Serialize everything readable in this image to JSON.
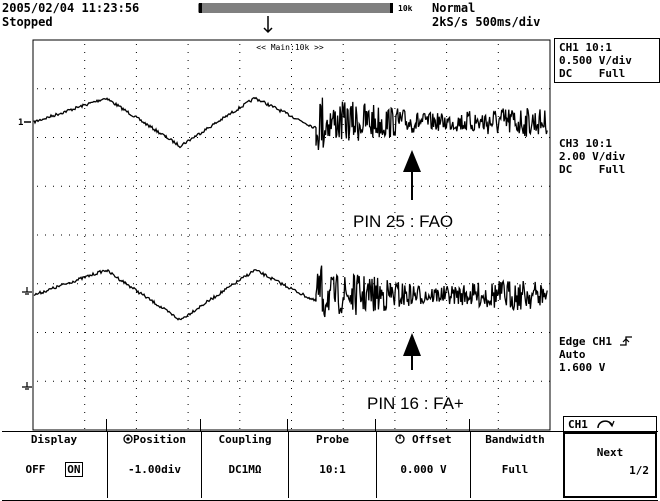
{
  "header": {
    "timestamp": "2005/02/04 11:23:56",
    "status": "Stopped",
    "record_length": "10k",
    "trigger_mode": "Normal",
    "sample_rate": "2kS/s",
    "timebase": "500ms/div"
  },
  "zoom_label": "<< Main:10k >>",
  "channels": {
    "ch1": {
      "title": "CH1 10:1",
      "scale": "0.500 V/div",
      "coupling": "DC",
      "bandwidth": "Full"
    },
    "ch3": {
      "title": "CH3 10:1",
      "scale": "2.00 V/div",
      "coupling": "DC",
      "bandwidth": "Full"
    }
  },
  "trigger": {
    "line1": "Edge CH1",
    "mode": "Auto",
    "level": "1.600 V",
    "slope_icon": "rising-edge-icon"
  },
  "annotations": {
    "upper": "PIN 25 : FAO",
    "lower": "PIN 16 : FA+"
  },
  "menu": {
    "ch_label": "CH1",
    "items": [
      {
        "title": "Display",
        "off": "OFF",
        "on": "ON"
      },
      {
        "title": "Position",
        "value": "-1.00div",
        "icon": "knob-icon"
      },
      {
        "title": "Coupling",
        "value": "DC1MΩ"
      },
      {
        "title": "Probe",
        "value": "10:1"
      },
      {
        "title": "Offset",
        "value": "0.000 V",
        "icon": "knob-icon"
      },
      {
        "title": "Bandwidth",
        "value": "Full"
      },
      {
        "title": "Next",
        "value": "1/2"
      }
    ]
  },
  "colors": {
    "trace": "#000000",
    "grid": "#000000",
    "background": "#ffffff"
  }
}
